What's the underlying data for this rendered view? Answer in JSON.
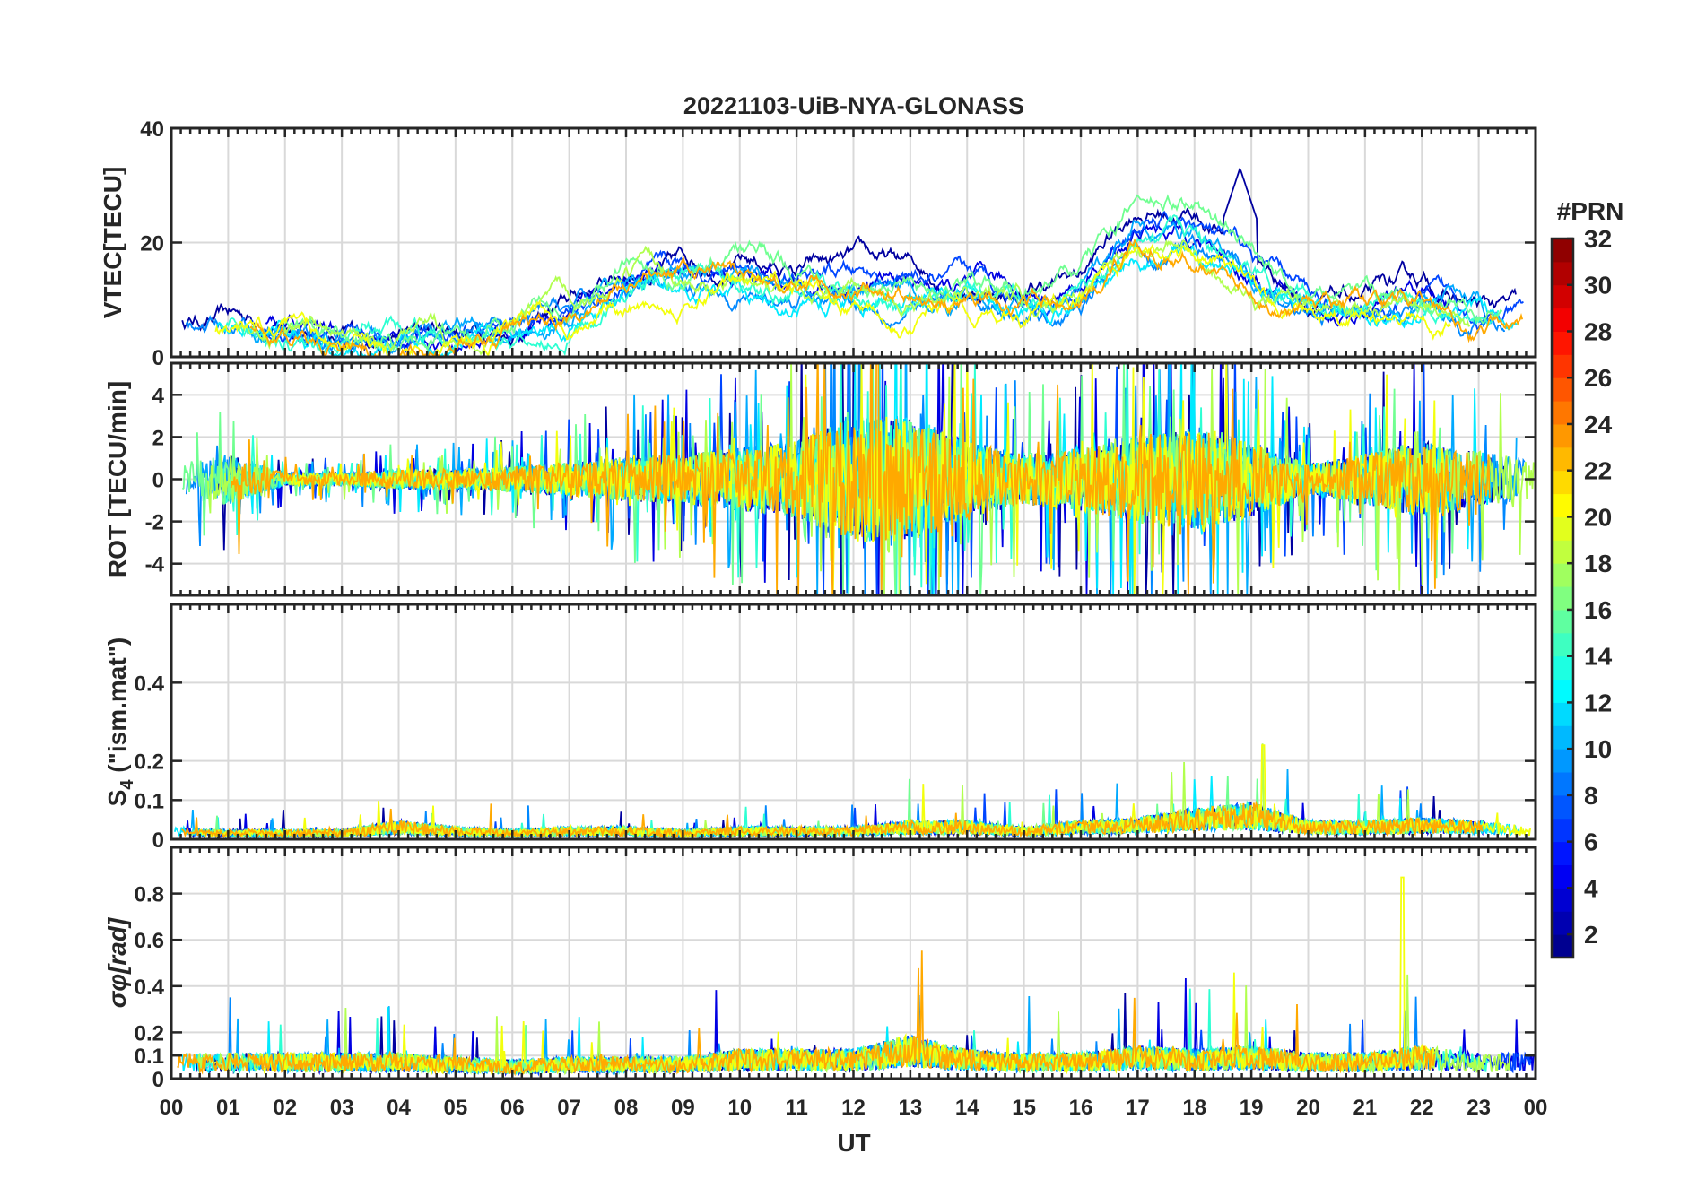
{
  "chart_data": {
    "type": "line",
    "title": "20221103-UiB-NYA-GLONASS",
    "xlabel": "UT",
    "x_tick_labels": [
      "00",
      "01",
      "02",
      "03",
      "04",
      "05",
      "06",
      "07",
      "08",
      "09",
      "10",
      "11",
      "12",
      "13",
      "14",
      "15",
      "16",
      "17",
      "18",
      "19",
      "20",
      "21",
      "22",
      "23",
      "00"
    ],
    "xlim_hours": [
      0,
      24
    ],
    "grid": true,
    "colorbar": {
      "label": "#PRN",
      "range": [
        1,
        32
      ],
      "ticks": [
        2,
        4,
        6,
        8,
        10,
        12,
        14,
        16,
        18,
        20,
        22,
        24,
        26,
        28,
        30,
        32
      ],
      "tick_labels": [
        "2",
        "4",
        "6",
        "8",
        "10",
        "12",
        "14",
        "16",
        "18",
        "20",
        "22",
        "24",
        "26",
        "28",
        "30",
        "32"
      ],
      "colormap": "jet",
      "placement": "right"
    },
    "series_prns": [
      2,
      4,
      7,
      9,
      10,
      12,
      14,
      16,
      18,
      20,
      23
    ],
    "panels": [
      {
        "id": "vtec",
        "ylabel": "VTEC[TECU]",
        "ylim": [
          0,
          40
        ],
        "yticks": [
          0,
          20,
          40
        ],
        "ytick_labels": [
          "0",
          "20",
          "40"
        ],
        "hourly_level": [
          6,
          6,
          5,
          3,
          3,
          4,
          5,
          8,
          13,
          14,
          15,
          13,
          13,
          12,
          11,
          10,
          12,
          22,
          22,
          15,
          9,
          8,
          10,
          7,
          6
        ],
        "peak": {
          "hour": 18.8,
          "value": 33
        },
        "noise": 2.5
      },
      {
        "id": "rot",
        "ylabel": "ROT [TECU/min]",
        "ylim": [
          -5.5,
          5.5
        ],
        "yticks": [
          -4,
          -2,
          0,
          2,
          4
        ],
        "ytick_labels": [
          "-4",
          "-2",
          "0",
          "2",
          "4"
        ],
        "hourly_level": [
          1.5,
          2,
          0.5,
          0.5,
          0.8,
          0.8,
          1,
          1.3,
          1.8,
          2,
          2.5,
          3,
          5,
          5,
          3,
          2,
          2.5,
          3.5,
          4,
          3,
          1.2,
          2,
          3,
          2.2,
          1.5
        ],
        "noise": 1
      },
      {
        "id": "s4",
        "ylabel": "S4 (\"ism.mat\")",
        "ylabel_main": "S",
        "ylabel_sub": "4",
        "ylabel_rest": " (\"ism.mat\")",
        "ylim": [
          0,
          0.6
        ],
        "yticks": [
          0,
          0.1,
          0.2,
          0.4
        ],
        "ytick_labels": [
          "0",
          "0.1",
          "0.2",
          "0.4"
        ],
        "hourly_level": [
          0.02,
          0.015,
          0.015,
          0.015,
          0.03,
          0.02,
          0.015,
          0.02,
          0.02,
          0.015,
          0.02,
          0.02,
          0.02,
          0.03,
          0.03,
          0.02,
          0.03,
          0.035,
          0.05,
          0.06,
          0.03,
          0.03,
          0.035,
          0.03,
          0.02
        ],
        "peak": {
          "hour": 19.2,
          "value": 0.24
        },
        "noise": 0.012
      },
      {
        "id": "sigma",
        "ylabel": "σφ[rad]",
        "ylabel_main": "σ",
        "ylabel_sub": "φ",
        "ylabel_rest": "[rad]",
        "ylim": [
          0,
          1.0
        ],
        "yticks": [
          0,
          0.1,
          0.2,
          0.4,
          0.6,
          0.8
        ],
        "ytick_labels": [
          "0",
          "0.1",
          "0.2",
          "0.4",
          "0.6",
          "0.8"
        ],
        "hourly_level": [
          0.07,
          0.07,
          0.07,
          0.07,
          0.07,
          0.06,
          0.05,
          0.06,
          0.06,
          0.06,
          0.08,
          0.08,
          0.08,
          0.12,
          0.08,
          0.07,
          0.07,
          0.09,
          0.08,
          0.09,
          0.07,
          0.07,
          0.09,
          0.07,
          0.07
        ],
        "peak": {
          "hour": 21.65,
          "value": 0.87
        },
        "noise": 0.03
      }
    ]
  }
}
